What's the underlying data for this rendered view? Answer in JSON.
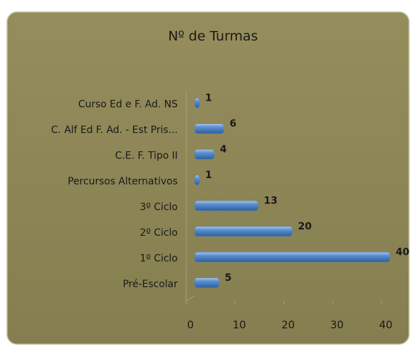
{
  "chart_data": {
    "type": "bar",
    "orientation": "horizontal",
    "title": "Nº de Turmas",
    "categories": [
      "Curso Ed e F. Ad. NS",
      "C. Alf Ed F. Ad. - Est Pris...",
      "C.E. F. Tipo II",
      "Percursos Alternativos",
      "3º Ciclo",
      "2º Ciclo",
      "1º Ciclo",
      "Pré-Escolar"
    ],
    "values": [
      1,
      6,
      4,
      1,
      13,
      20,
      40,
      5
    ],
    "color": "#4f81bd",
    "xlim": [
      0,
      40
    ],
    "xticks": [
      0,
      10,
      20,
      30,
      40
    ]
  }
}
